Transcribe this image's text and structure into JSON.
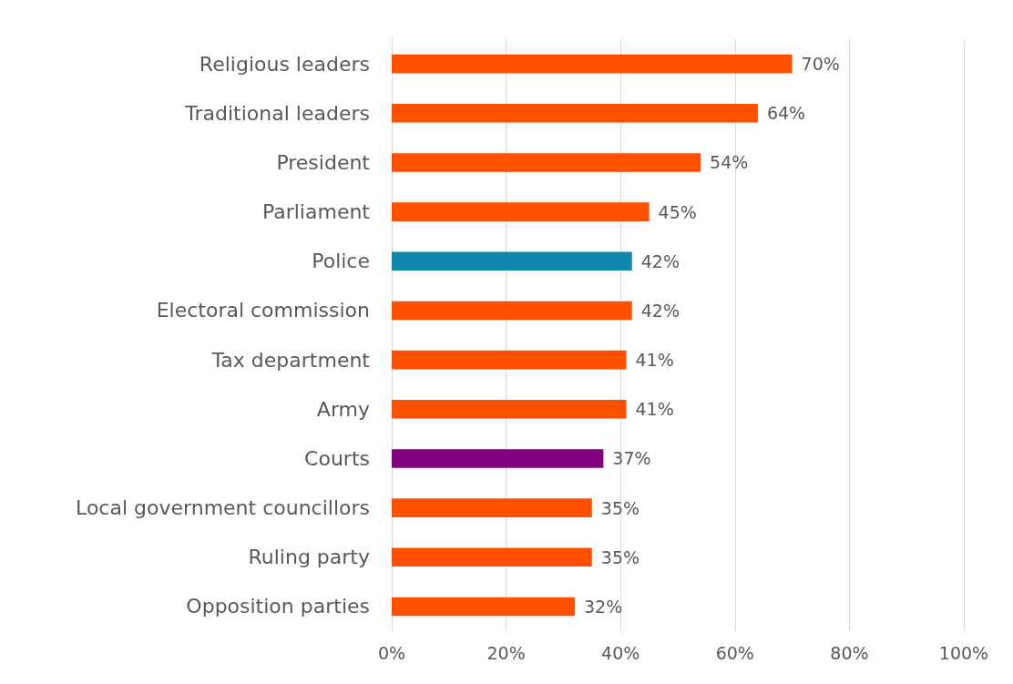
{
  "chart_data": {
    "type": "bar",
    "orientation": "horizontal",
    "categories": [
      "Religious leaders",
      "Traditional leaders",
      "President",
      "Parliament",
      "Police",
      "Electoral commission",
      "Tax department",
      "Army",
      "Courts",
      "Local government councillors",
      "Ruling party",
      "Opposition parties"
    ],
    "values": [
      70,
      64,
      54,
      45,
      42,
      42,
      41,
      41,
      37,
      35,
      35,
      32
    ],
    "colors": [
      "#ff5000",
      "#ff5000",
      "#ff5000",
      "#ff5000",
      "#1087ad",
      "#ff5000",
      "#ff5000",
      "#ff5000",
      "#800080",
      "#ff5000",
      "#ff5000",
      "#ff5000"
    ],
    "value_labels": [
      "70%",
      "64%",
      "54%",
      "45%",
      "42%",
      "42%",
      "41%",
      "41%",
      "37%",
      "35%",
      "35%",
      "32%"
    ],
    "xlim": [
      0,
      100
    ],
    "xticks": [
      {
        "value": 0,
        "label": "0%"
      },
      {
        "value": 20,
        "label": "20%"
      },
      {
        "value": 40,
        "label": "40%"
      },
      {
        "value": 60,
        "label": "60%"
      },
      {
        "value": 80,
        "label": "80%"
      },
      {
        "value": 100,
        "label": "100%"
      }
    ],
    "grid": "x"
  }
}
